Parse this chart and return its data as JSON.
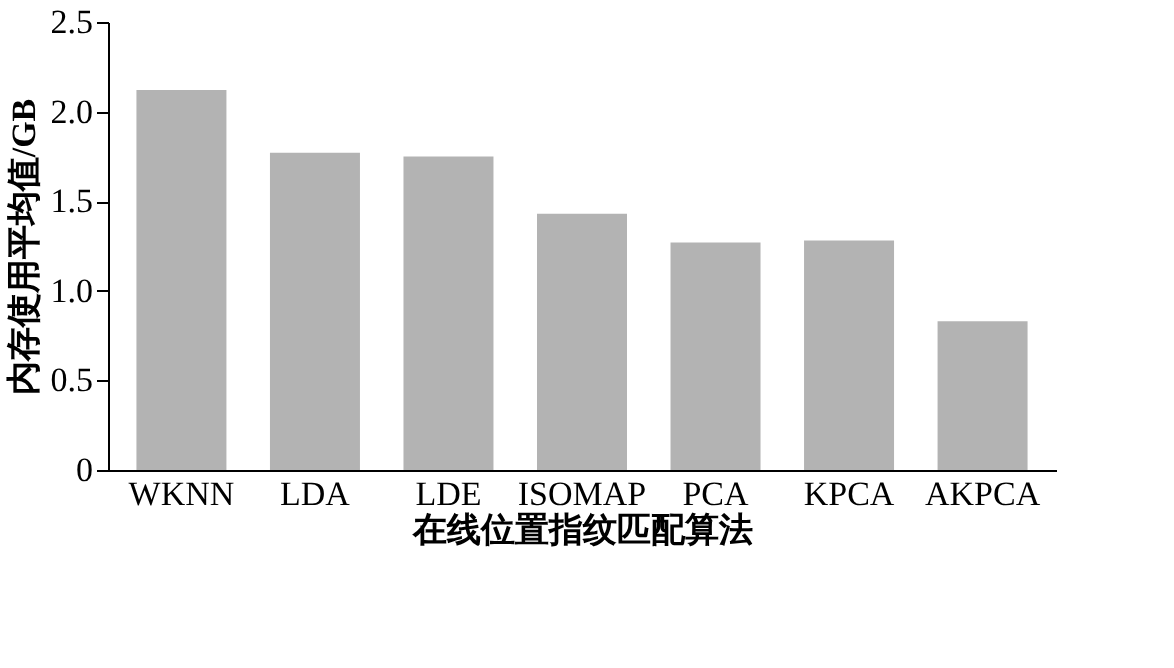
{
  "chart_data": {
    "type": "bar",
    "xlabel": "在线位置指纹匹配算法",
    "ylabel": "内存使用平均值/GB",
    "categories": [
      "WKNN",
      "LDA",
      "LDE",
      "ISOMAP",
      "PCA",
      "KPCA",
      "AKPCA"
    ],
    "values": [
      2.12,
      1.77,
      1.75,
      1.43,
      1.27,
      1.28,
      0.83
    ],
    "color": "#b3b3b3",
    "ylim": [
      0,
      2.5
    ],
    "yticks": [
      {
        "value": 0,
        "label": "0"
      },
      0.5,
      {
        "value": 1,
        "label": "1.0"
      },
      1.5,
      {
        "value": 2,
        "label": "2.0"
      },
      2.5
    ],
    "grid": false
  }
}
